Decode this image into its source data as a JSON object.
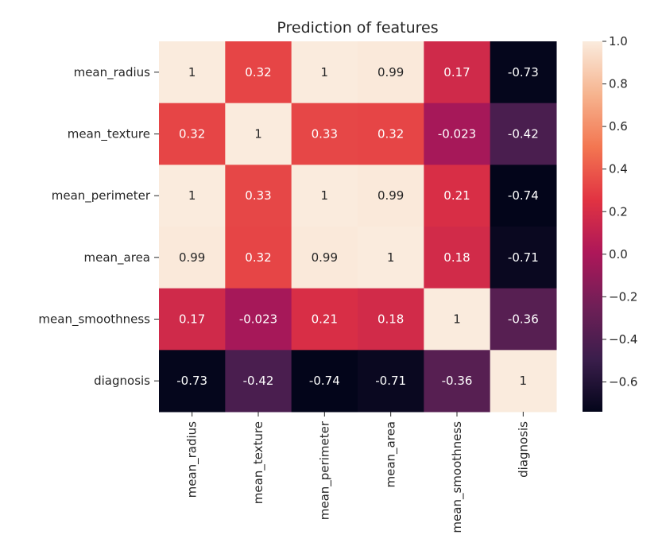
{
  "chart_data": {
    "type": "heatmap",
    "title": "Prediction of features",
    "row_labels": [
      "mean_radius",
      "mean_texture",
      "mean_perimeter",
      "mean_area",
      "mean_smoothness",
      "diagnosis"
    ],
    "col_labels": [
      "mean_radius",
      "mean_texture",
      "mean_perimeter",
      "mean_area",
      "mean_smoothness",
      "diagnosis"
    ],
    "values": [
      [
        1,
        0.32,
        1,
        0.99,
        0.17,
        -0.73
      ],
      [
        0.32,
        1,
        0.33,
        0.32,
        -0.023,
        -0.42
      ],
      [
        1,
        0.33,
        1,
        0.99,
        0.21,
        -0.74
      ],
      [
        0.99,
        0.32,
        0.99,
        1,
        0.18,
        -0.71
      ],
      [
        0.17,
        -0.023,
        0.21,
        0.18,
        1,
        -0.36
      ],
      [
        -0.73,
        -0.42,
        -0.74,
        -0.71,
        -0.36,
        1
      ]
    ],
    "annotations": [
      [
        "1",
        "0.32",
        "1",
        "0.99",
        "0.17",
        "-0.73"
      ],
      [
        "0.32",
        "1",
        "0.33",
        "0.32",
        "-0.023",
        "-0.42"
      ],
      [
        "1",
        "0.33",
        "1",
        "0.99",
        "0.21",
        "-0.74"
      ],
      [
        "0.99",
        "0.32",
        "0.99",
        "1",
        "0.18",
        "-0.71"
      ],
      [
        "0.17",
        "-0.023",
        "0.21",
        "0.18",
        "1",
        "-0.36"
      ],
      [
        "-0.73",
        "-0.42",
        "-0.74",
        "-0.71",
        "-0.36",
        "1"
      ]
    ],
    "colorbar": {
      "range": [
        -0.74,
        1.0
      ],
      "ticks": [
        1.0,
        0.8,
        0.6,
        0.4,
        0.2,
        0.0,
        -0.2,
        -0.4,
        -0.6
      ],
      "tick_labels": [
        "1.0",
        "0.8",
        "0.6",
        "0.4",
        "0.2",
        "0.0",
        "−0.2",
        "−0.4",
        "−0.6"
      ],
      "colormap": "rocket",
      "colormap_stops": [
        "#03051a",
        "#3b1e4c",
        "#701f57",
        "#ad1759",
        "#e13342",
        "#f37651",
        "#f6b48f",
        "#faebdd"
      ]
    },
    "annotation_colors": {
      "dark_cells": "#262626",
      "light_cells": "#ffffff"
    },
    "grid": false
  }
}
